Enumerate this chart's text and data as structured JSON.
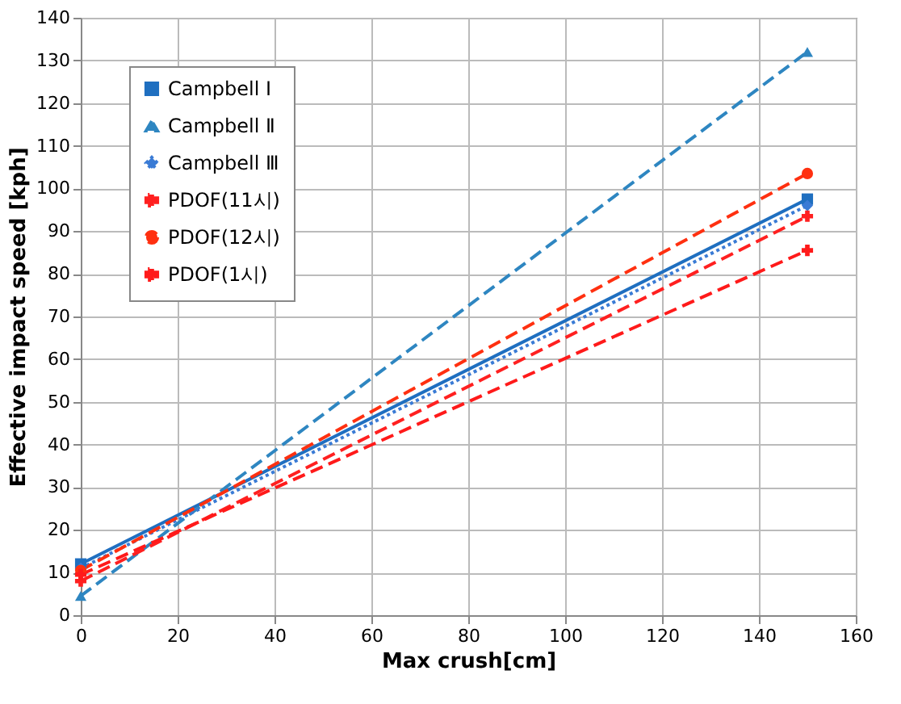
{
  "chart_data": {
    "type": "line",
    "xlabel": "Max crush[cm]",
    "ylabel": "Effective impact speed [kph]",
    "x": [
      0,
      150
    ],
    "series": [
      {
        "name": "Campbell Ⅰ",
        "color": "#1f6fc0",
        "values": [
          12,
          97.5
        ],
        "marker": "square",
        "line_style": "solid"
      },
      {
        "name": "Campbell Ⅱ",
        "color": "#2e86c1",
        "values": [
          4.5,
          132
        ],
        "marker": "triangle",
        "line_style": "dashed"
      },
      {
        "name": "Campbell Ⅲ",
        "color": "#3a7bd5",
        "values": [
          11,
          96
        ],
        "marker": "diamond",
        "line_style": "dotted"
      },
      {
        "name": "PDOF(11시)",
        "color": "#ff2020",
        "values": [
          8,
          93.5
        ],
        "marker": "cross",
        "line_style": "dashed"
      },
      {
        "name": "PDOF(12시)",
        "color": "#ff3010",
        "values": [
          10.5,
          103.5
        ],
        "marker": "circle",
        "line_style": "dashed"
      },
      {
        "name": "PDOF(1시)",
        "color": "#ff1a1a",
        "values": [
          9.5,
          85.5
        ],
        "marker": "cross",
        "line_style": "dashed"
      }
    ],
    "xlim": [
      0,
      160
    ],
    "xticks": [
      0,
      20,
      40,
      60,
      80,
      100,
      120,
      140,
      160
    ],
    "ylim": [
      0,
      140
    ],
    "yticks": [
      0,
      10,
      20,
      30,
      40,
      50,
      60,
      70,
      80,
      90,
      100,
      110,
      120,
      130,
      140
    ],
    "grid": true,
    "legend": "top left"
  }
}
